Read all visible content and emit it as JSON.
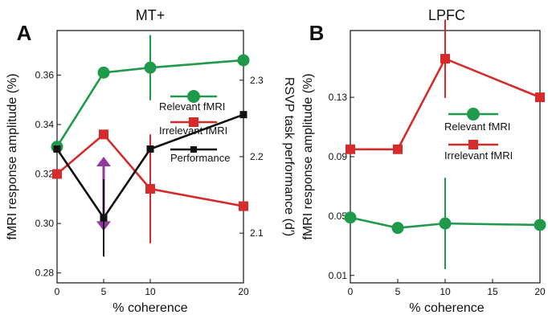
{
  "chart_data": [
    {
      "type": "line",
      "panel_letter": "A",
      "title": "MT+",
      "xlabel": "% coherence",
      "ylabel": "fMRI response amplitude (%)",
      "y2label": "RSVP task performance (d′)",
      "x": [
        0,
        5,
        10,
        20
      ],
      "xticks": [
        "0",
        "5",
        "10",
        "20"
      ],
      "ylim": [
        0.276,
        0.378
      ],
      "yticks": [
        "0.28",
        "0.30",
        "0.32",
        "0.34",
        "0.36"
      ],
      "y2lim": [
        2.035,
        2.365
      ],
      "y2ticks": [
        "2.1",
        "2.2",
        "2.3"
      ],
      "series": [
        {
          "name": "Relevant fMRI",
          "axis": "left",
          "color": "#1f9a4b",
          "marker": "circle",
          "values": [
            0.331,
            0.361,
            0.363,
            0.366
          ],
          "err": [
            0,
            0,
            0.006,
            0
          ]
        },
        {
          "name": "Irrelevant fMRI",
          "axis": "left",
          "color": "#d62b2b",
          "marker": "square",
          "values": [
            0.32,
            0.336,
            0.314,
            0.307
          ],
          "err": [
            0,
            0,
            0.01,
            0
          ]
        },
        {
          "name": "Performance",
          "axis": "right",
          "color": "#111111",
          "marker": "square",
          "values": [
            2.21,
            2.12,
            2.21,
            2.255
          ],
          "err": [
            0,
            0.023,
            0,
            0
          ]
        }
      ],
      "annotation": {
        "type": "double-arrow",
        "color": "#8e3a9e",
        "x": 5,
        "y_from": 0.297,
        "y_to": 0.327
      },
      "legend_position": "right"
    },
    {
      "type": "line",
      "panel_letter": "B",
      "title": "LPFC",
      "xlabel": "% coherence",
      "ylabel": "fMRI response amplitude (%)",
      "x": [
        0,
        5,
        10,
        20
      ],
      "xticks": [
        "0",
        "5",
        "10",
        "15",
        "20"
      ],
      "xtick_values": [
        0,
        5,
        10,
        15,
        20
      ],
      "ylim": [
        0.005,
        0.175
      ],
      "yticks": [
        "0.01",
        "0.05",
        "0.09",
        "0.13"
      ],
      "series": [
        {
          "name": "Relevant fMRI",
          "color": "#1f9a4b",
          "marker": "circle",
          "values": [
            0.049,
            0.042,
            0.045,
            0.044
          ],
          "err": [
            0,
            0,
            0.014,
            0
          ]
        },
        {
          "name": "Irrelevant fMRI",
          "color": "#d62b2b",
          "marker": "square",
          "values": [
            0.095,
            0.095,
            0.156,
            0.13
          ],
          "err": [
            0,
            0,
            0.012,
            0
          ]
        }
      ],
      "legend_position": "right"
    }
  ]
}
